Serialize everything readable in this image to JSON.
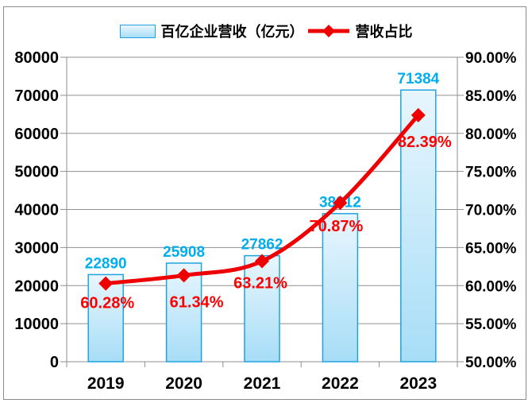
{
  "chart_data": {
    "type": "bar",
    "title": "",
    "categories": [
      "2019",
      "2020",
      "2021",
      "2022",
      "2023"
    ],
    "series": [
      {
        "name": "百亿企业营收（亿元）",
        "type": "bar",
        "axis": "left",
        "values": [
          22890,
          25908,
          27862,
          38912,
          71384
        ],
        "labels": [
          "22890",
          "25908",
          "27862",
          "38912",
          "71384"
        ]
      },
      {
        "name": "营收占比",
        "type": "line",
        "axis": "right",
        "values": [
          60.28,
          61.34,
          63.21,
          70.87,
          82.39
        ],
        "labels": [
          "60.28%",
          "61.34%",
          "63.21%",
          "70.87%",
          "82.39%"
        ]
      }
    ],
    "left_axis": {
      "min": 0,
      "max": 80000,
      "step": 10000,
      "labels": [
        "0",
        "10000",
        "20000",
        "30000",
        "40000",
        "50000",
        "60000",
        "70000",
        "80000"
      ]
    },
    "right_axis": {
      "min": 50,
      "max": 90,
      "step": 5,
      "labels": [
        "50.00%",
        "55.00%",
        "60.00%",
        "65.00%",
        "70.00%",
        "75.00%",
        "80.00%",
        "85.00%",
        "90.00%"
      ]
    },
    "grid": true,
    "legend_position": "top",
    "colors": {
      "bar_fill_top": "#E8F6FD",
      "bar_fill_bottom": "#A7DDF7",
      "bar_border": "#1FA3E0",
      "line": "#EE0000",
      "marker": "#EE0000",
      "value_label": "#00AEEF",
      "percent_label": "#FF0000",
      "axis_text": "#000000",
      "grid": "#8F8F8F",
      "frame_border": "#8C8C8C"
    }
  }
}
